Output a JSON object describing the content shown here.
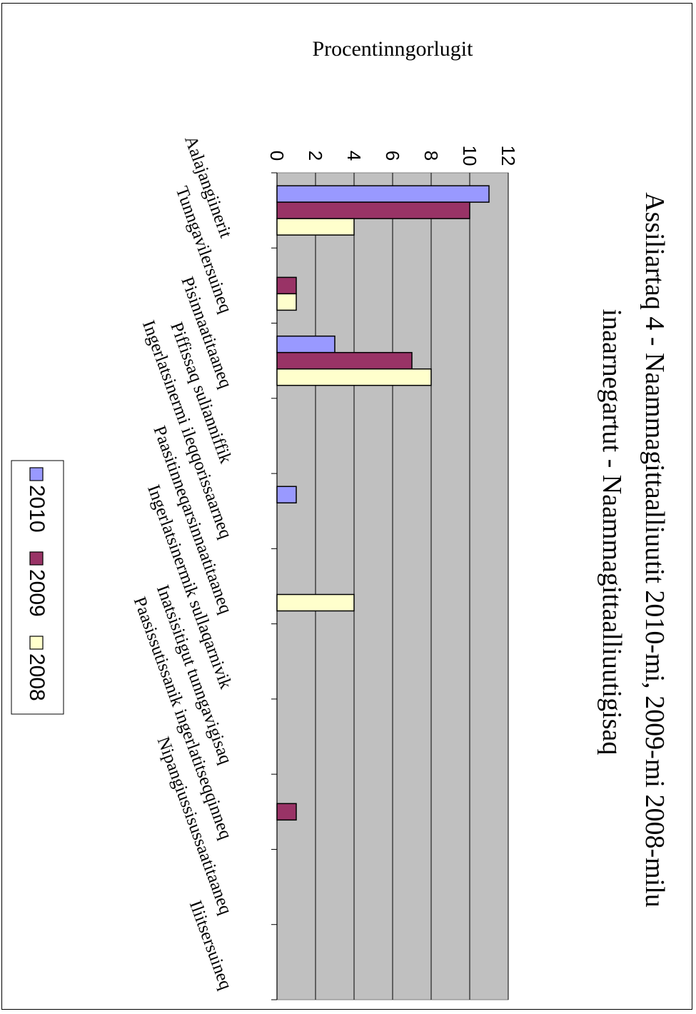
{
  "chart_data": {
    "type": "bar",
    "orientation": "rotated",
    "title_line1": "Assiliartaq 4 - Naammagittaalliuutit 2010-mi, 2009-mi 2008-milu",
    "title_line2": "inaarnegartut - Naammagittaalliuutigisaq",
    "ylabel": "Procentinngorlugit",
    "ylim": [
      0,
      12
    ],
    "ytick_labels": [
      "0",
      "2",
      "4",
      "6",
      "8",
      "10",
      "12"
    ],
    "grid": true,
    "legend_position": "bottom-left",
    "categories": [
      "Aalajangiinerit",
      "Tunngavilersuineq",
      "Pisinnaatitaaneq",
      "Piffissaq sulianniffik",
      "Ingerlatsinermi ileqqorissaarneq",
      "Paasitinneqarsinnaatitaaneq",
      "Ingerlatsinermik sullaqarnivik",
      "Inatsisitigut tunngavigisaq",
      "Paasissutissanik ingerlatitseqqinneq",
      "Nipangiussisussaatitaaneq",
      "Iliitsersuineq"
    ],
    "series": [
      {
        "name": "2010",
        "color": "#9999ff",
        "values": [
          11,
          0,
          3,
          0,
          1,
          0,
          0,
          0,
          0,
          0,
          0
        ]
      },
      {
        "name": "2009",
        "color": "#993366",
        "values": [
          10,
          1,
          7,
          0,
          0,
          0,
          0,
          0,
          1,
          0,
          0
        ]
      },
      {
        "name": "2008",
        "color": "#ffffcc",
        "values": [
          4,
          1,
          8,
          0,
          0,
          4,
          0,
          0,
          0,
          0,
          0
        ]
      }
    ],
    "plot_background": "#c0c0c0"
  }
}
